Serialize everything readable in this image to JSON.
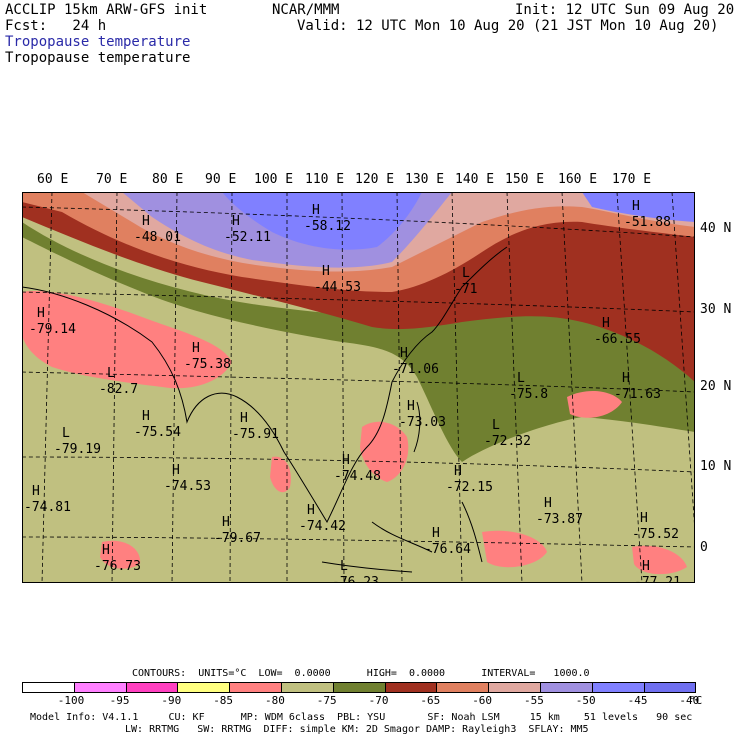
{
  "header": {
    "model": "ACCLIP 15km ARW-GFS init",
    "fcst": "Fcst:   24 h",
    "org": "NCAR/MMM",
    "init": "Init: 12 UTC Sun 09 Aug 20",
    "valid": "Valid: 12 UTC Mon 10 Aug 20 (21 JST Mon 10 Aug 20)",
    "field1": "Tropopause temperature",
    "field2": "Tropopause temperature",
    "field1_color": "#2a2aa8"
  },
  "lon_labels": [
    "60 E",
    "70 E",
    "80 E",
    "90 E",
    "100 E",
    "110 E",
    "120 E",
    "130 E",
    "140 E",
    "150 E",
    "160 E",
    "170 E"
  ],
  "lat_labels": [
    "40 N",
    "30 N",
    "20 N",
    "10 N",
    "0"
  ],
  "markers": [
    {
      "sym": "H",
      "val": "-48.01"
    },
    {
      "sym": "H",
      "val": "-52.11"
    },
    {
      "sym": "H",
      "val": "-58.12"
    },
    {
      "sym": "H",
      "val": "-44.53"
    },
    {
      "sym": "H",
      "val": "-51.88"
    },
    {
      "sym": "L",
      "val": "-71"
    },
    {
      "sym": "H",
      "val": "-66.55"
    },
    {
      "sym": "H",
      "val": "-79.14"
    },
    {
      "sym": "H",
      "val": "-75.38"
    },
    {
      "sym": "L",
      "val": "-82.7"
    },
    {
      "sym": "H",
      "val": "-71.06"
    },
    {
      "sym": "L",
      "val": "-75.8"
    },
    {
      "sym": "H",
      "val": "-71.63"
    },
    {
      "sym": "H",
      "val": "-75.54"
    },
    {
      "sym": "H",
      "val": "-75.91"
    },
    {
      "sym": "H",
      "val": "-73.03"
    },
    {
      "sym": "L",
      "val": "-72.32"
    },
    {
      "sym": "L",
      "val": "-79.19"
    },
    {
      "sym": "H",
      "val": "-74.53"
    },
    {
      "sym": "H",
      "val": "-74.48"
    },
    {
      "sym": "H",
      "val": "-72.15"
    },
    {
      "sym": "H",
      "val": "-74.81"
    },
    {
      "sym": "H",
      "val": "-79.67"
    },
    {
      "sym": "H",
      "val": "-74.42"
    },
    {
      "sym": "H",
      "val": "-73.87"
    },
    {
      "sym": "H",
      "val": "-75.52"
    },
    {
      "sym": "H",
      "val": "-76.73"
    },
    {
      "sym": "H",
      "val": "-76.64"
    },
    {
      "sym": "L",
      "val": "-76.23"
    },
    {
      "sym": "H",
      "val": "-77.21"
    }
  ],
  "colors": {
    "lt_-95": "#ffffff",
    "-95_-90": "#ff80ff",
    "-90_-85": "#ff40c0",
    "-85_-80": "#ffff80",
    "-80_-75": "#ff8080",
    "-75_-70": "#c0c080",
    "-70_-65": "#708030",
    "-65_-60": "#a03020",
    "-60_-55": "#e08060",
    "-55_-50": "#e0a8a0",
    "-50_-45": "#a090e0",
    "-45_-40": "#8080ff",
    "gt_-40": "#7070f0"
  },
  "footer": {
    "contours": "CONTOURS:  UNITS=°C  LOW=  0.0000      HIGH=  0.0000      INTERVAL=   1000.0",
    "colorbar_ticks": [
      "-100",
      "-95",
      "-90",
      "-85",
      "-80",
      "-75",
      "-70",
      "-65",
      "-60",
      "-55",
      "-50",
      "-45",
      "-40"
    ],
    "unit": "°C",
    "info1": "Model Info: V4.1.1     CU: KF      MP: WDM 6class  PBL: YSU       SF: Noah LSM     15 km    51 levels   90 sec",
    "info2": "LW: RRTMG   SW: RRTMG  DIFF: simple KM: 2D Smagor DAMP: Rayleigh3  SFLAY: MM5"
  }
}
